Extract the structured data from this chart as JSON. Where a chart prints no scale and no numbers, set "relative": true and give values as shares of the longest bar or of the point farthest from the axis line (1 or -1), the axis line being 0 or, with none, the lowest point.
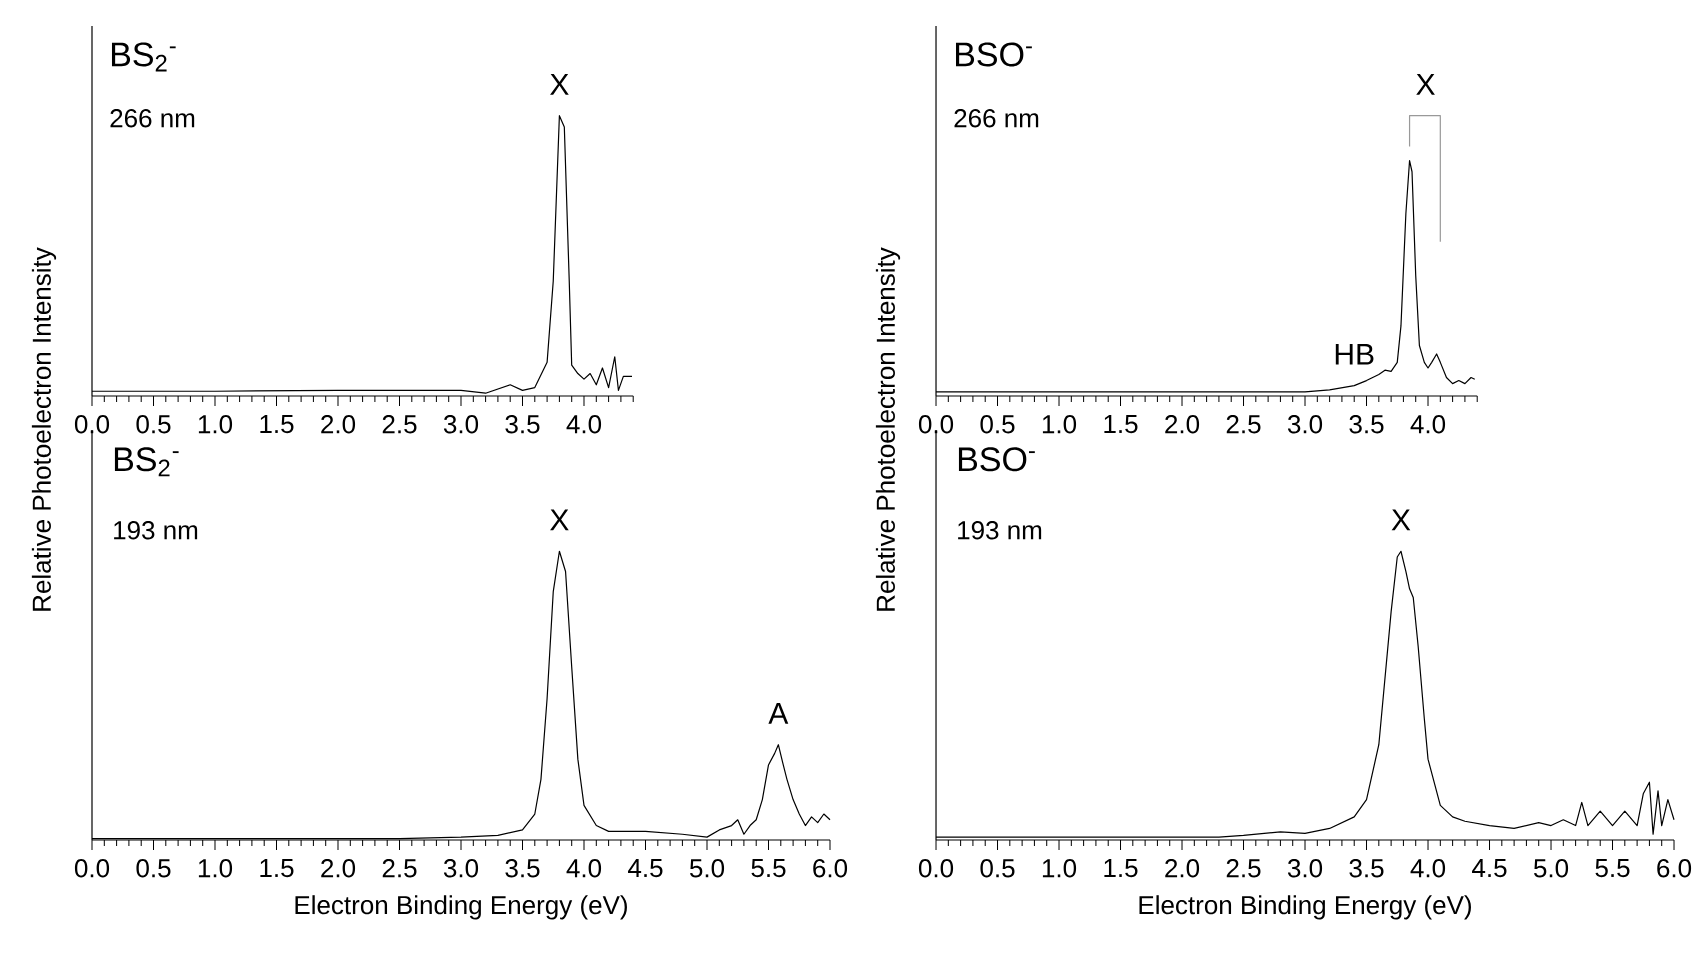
{
  "chart_data": [
    {
      "type": "line",
      "relative": true,
      "title": "BS$_{2}$$^{-}$",
      "subtitle": "266 nm",
      "ylabel": "Relative Photoelectron Intensity",
      "xlim": [
        0,
        4.4
      ],
      "xticks": [
        {
          "value": 0,
          "label": "0.0"
        },
        {
          "value": 0.1,
          "label": null
        },
        {
          "value": 0.2,
          "label": null
        },
        {
          "value": 0.3,
          "label": null
        },
        {
          "value": 0.4,
          "label": null
        },
        {
          "value": 0.5,
          "label": "0.5"
        },
        {
          "value": 0.6,
          "label": null
        },
        {
          "value": 0.7,
          "label": null
        },
        {
          "value": 0.8,
          "label": null
        },
        {
          "value": 0.9,
          "label": null
        },
        {
          "value": 1.0,
          "label": "1.0"
        },
        {
          "value": 1.1,
          "label": null
        },
        {
          "value": 1.2,
          "label": null
        },
        {
          "value": 1.3,
          "label": null
        },
        {
          "value": 1.4,
          "label": null
        },
        {
          "value": 1.5,
          "label": "1.5"
        },
        {
          "value": 1.6,
          "label": null
        },
        {
          "value": 1.7,
          "label": null
        },
        {
          "value": 1.8,
          "label": null
        },
        {
          "value": 1.9,
          "label": null
        },
        {
          "value": 2.0,
          "label": "2.0"
        },
        {
          "value": 2.1,
          "label": null
        },
        {
          "value": 2.2,
          "label": null
        },
        {
          "value": 2.3,
          "label": null
        },
        {
          "value": 2.4,
          "label": null
        },
        {
          "value": 2.5,
          "label": "2.5"
        },
        {
          "value": 2.6,
          "label": null
        },
        {
          "value": 2.7,
          "label": null
        },
        {
          "value": 2.8,
          "label": null
        },
        {
          "value": 2.9,
          "label": null
        },
        {
          "value": 3.0,
          "label": "3.0"
        },
        {
          "value": 3.1,
          "label": null
        },
        {
          "value": 3.2,
          "label": null
        },
        {
          "value": 3.3,
          "label": null
        },
        {
          "value": 3.4,
          "label": null
        },
        {
          "value": 3.5,
          "label": "3.5"
        },
        {
          "value": 3.6,
          "label": null
        },
        {
          "value": 3.7,
          "label": null
        },
        {
          "value": 3.8,
          "label": null
        },
        {
          "value": 3.9,
          "label": null
        },
        {
          "value": 4.0,
          "label": "4.0"
        },
        {
          "value": 4.1,
          "label": null
        },
        {
          "value": 4.2,
          "label": null
        },
        {
          "value": 4.3,
          "label": null
        },
        {
          "value": 4.4,
          "label": null
        }
      ],
      "series": [
        {
          "color": "#000000",
          "x": [
            0,
            1.0,
            2.0,
            2.5,
            3.0,
            3.2,
            3.4,
            3.5,
            3.6,
            3.7,
            3.75,
            3.8,
            3.84,
            3.88,
            3.9,
            3.95,
            4.0,
            4.05,
            4.1,
            4.15,
            4.2,
            4.25,
            4.28,
            4.32,
            4.39
          ],
          "values": [
            0.017,
            0.017,
            0.02,
            0.02,
            0.02,
            0.01,
            0.04,
            0.02,
            0.03,
            0.12,
            0.41,
            1.0,
            0.96,
            0.41,
            0.11,
            0.08,
            0.06,
            0.08,
            0.04,
            0.1,
            0.03,
            0.14,
            0.02,
            0.07,
            0.07
          ]
        }
      ],
      "annotations": [
        {
          "text": "X",
          "x": 3.8,
          "y": 1.0
        }
      ]
    },
    {
      "type": "line",
      "relative": true,
      "title": "BSO$^{-}$",
      "subtitle": "266 nm",
      "ylabel": "Relative Photoelectron Intensity",
      "xlim": [
        0,
        4.4
      ],
      "xticks": [
        {
          "value": 0,
          "label": "0.0"
        },
        {
          "value": 0.1,
          "label": null
        },
        {
          "value": 0.2,
          "label": null
        },
        {
          "value": 0.3,
          "label": null
        },
        {
          "value": 0.4,
          "label": null
        },
        {
          "value": 0.5,
          "label": "0.5"
        },
        {
          "value": 0.6,
          "label": null
        },
        {
          "value": 0.7,
          "label": null
        },
        {
          "value": 0.8,
          "label": null
        },
        {
          "value": 0.9,
          "label": null
        },
        {
          "value": 1.0,
          "label": "1.0"
        },
        {
          "value": 1.1,
          "label": null
        },
        {
          "value": 1.2,
          "label": null
        },
        {
          "value": 1.3,
          "label": null
        },
        {
          "value": 1.4,
          "label": null
        },
        {
          "value": 1.5,
          "label": "1.5"
        },
        {
          "value": 1.6,
          "label": null
        },
        {
          "value": 1.7,
          "label": null
        },
        {
          "value": 1.8,
          "label": null
        },
        {
          "value": 1.9,
          "label": null
        },
        {
          "value": 2.0,
          "label": "2.0"
        },
        {
          "value": 2.1,
          "label": null
        },
        {
          "value": 2.2,
          "label": null
        },
        {
          "value": 2.3,
          "label": null
        },
        {
          "value": 2.4,
          "label": null
        },
        {
          "value": 2.5,
          "label": "2.5"
        },
        {
          "value": 2.6,
          "label": null
        },
        {
          "value": 2.7,
          "label": null
        },
        {
          "value": 2.8,
          "label": null
        },
        {
          "value": 2.9,
          "label": null
        },
        {
          "value": 3.0,
          "label": "3.0"
        },
        {
          "value": 3.1,
          "label": null
        },
        {
          "value": 3.2,
          "label": null
        },
        {
          "value": 3.3,
          "label": null
        },
        {
          "value": 3.4,
          "label": null
        },
        {
          "value": 3.5,
          "label": "3.5"
        },
        {
          "value": 3.6,
          "label": null
        },
        {
          "value": 3.7,
          "label": null
        },
        {
          "value": 3.8,
          "label": null
        },
        {
          "value": 3.9,
          "label": null
        },
        {
          "value": 4.0,
          "label": "4.0"
        },
        {
          "value": 4.1,
          "label": null
        },
        {
          "value": 4.2,
          "label": null
        },
        {
          "value": 4.3,
          "label": null
        },
        {
          "value": 4.4,
          "label": null
        }
      ],
      "series": [
        {
          "color": "#000000",
          "x": [
            0,
            1.0,
            2.0,
            3.0,
            3.2,
            3.4,
            3.5,
            3.6,
            3.65,
            3.7,
            3.75,
            3.78,
            3.82,
            3.85,
            3.87,
            3.9,
            3.93,
            3.97,
            4.0,
            4.03,
            4.07,
            4.1,
            4.15,
            4.2,
            4.25,
            4.3,
            4.35,
            4.38
          ],
          "values": [
            0.015,
            0.015,
            0.015,
            0.015,
            0.022,
            0.037,
            0.055,
            0.077,
            0.092,
            0.088,
            0.12,
            0.25,
            0.65,
            0.84,
            0.8,
            0.43,
            0.18,
            0.12,
            0.1,
            0.12,
            0.15,
            0.12,
            0.066,
            0.044,
            0.055,
            0.044,
            0.066,
            0.06
          ]
        },
        {
          "color": "#999999",
          "x": [
            3.85,
            3.85,
            4.1,
            4.1
          ],
          "values": [
            0.89,
            1.0,
            1.0,
            0.55
          ]
        }
      ],
      "annotations": [
        {
          "text": "X",
          "x": 3.98,
          "y": 1.0
        },
        {
          "text": "HB",
          "x": 3.4,
          "y": 0.037
        }
      ]
    },
    {
      "type": "line",
      "relative": true,
      "title": "BS$_{2}$$^{-}$",
      "subtitle": "193 nm",
      "xlabel": "Electron Binding Energy (eV)",
      "xlim": [
        0,
        6.0
      ],
      "xticks": [
        {
          "value": 0,
          "label": "0.0"
        },
        {
          "value": 0.1,
          "label": null
        },
        {
          "value": 0.2,
          "label": null
        },
        {
          "value": 0.3,
          "label": null
        },
        {
          "value": 0.4,
          "label": null
        },
        {
          "value": 0.5,
          "label": "0.5"
        },
        {
          "value": 0.6,
          "label": null
        },
        {
          "value": 0.7,
          "label": null
        },
        {
          "value": 0.8,
          "label": null
        },
        {
          "value": 0.9,
          "label": null
        },
        {
          "value": 1.0,
          "label": "1.0"
        },
        {
          "value": 1.1,
          "label": null
        },
        {
          "value": 1.2,
          "label": null
        },
        {
          "value": 1.3,
          "label": null
        },
        {
          "value": 1.4,
          "label": null
        },
        {
          "value": 1.5,
          "label": "1.5"
        },
        {
          "value": 1.6,
          "label": null
        },
        {
          "value": 1.7,
          "label": null
        },
        {
          "value": 1.8,
          "label": null
        },
        {
          "value": 1.9,
          "label": null
        },
        {
          "value": 2.0,
          "label": "2.0"
        },
        {
          "value": 2.1,
          "label": null
        },
        {
          "value": 2.2,
          "label": null
        },
        {
          "value": 2.3,
          "label": null
        },
        {
          "value": 2.4,
          "label": null
        },
        {
          "value": 2.5,
          "label": "2.5"
        },
        {
          "value": 2.6,
          "label": null
        },
        {
          "value": 2.7,
          "label": null
        },
        {
          "value": 2.8,
          "label": null
        },
        {
          "value": 2.9,
          "label": null
        },
        {
          "value": 3.0,
          "label": "3.0"
        },
        {
          "value": 3.1,
          "label": null
        },
        {
          "value": 3.2,
          "label": null
        },
        {
          "value": 3.3,
          "label": null
        },
        {
          "value": 3.4,
          "label": null
        },
        {
          "value": 3.5,
          "label": "3.5"
        },
        {
          "value": 3.6,
          "label": null
        },
        {
          "value": 3.7,
          "label": null
        },
        {
          "value": 3.8,
          "label": null
        },
        {
          "value": 3.9,
          "label": null
        },
        {
          "value": 4.0,
          "label": "4.0"
        },
        {
          "value": 4.1,
          "label": null
        },
        {
          "value": 4.2,
          "label": null
        },
        {
          "value": 4.3,
          "label": null
        },
        {
          "value": 4.4,
          "label": null
        },
        {
          "value": 4.5,
          "label": "4.5"
        },
        {
          "value": 4.6,
          "label": null
        },
        {
          "value": 4.7,
          "label": null
        },
        {
          "value": 4.8,
          "label": null
        },
        {
          "value": 4.9,
          "label": null
        },
        {
          "value": 5.0,
          "label": "5.0"
        },
        {
          "value": 5.1,
          "label": null
        },
        {
          "value": 5.2,
          "label": null
        },
        {
          "value": 5.3,
          "label": null
        },
        {
          "value": 5.4,
          "label": null
        },
        {
          "value": 5.5,
          "label": "5.5"
        },
        {
          "value": 5.6,
          "label": null
        },
        {
          "value": 5.7,
          "label": null
        },
        {
          "value": 5.8,
          "label": null
        },
        {
          "value": 5.9,
          "label": null
        },
        {
          "value": 6.0,
          "label": "6.0"
        }
      ],
      "series": [
        {
          "color": "#000000",
          "x": [
            0,
            1.0,
            2.0,
            2.5,
            3.0,
            3.3,
            3.5,
            3.6,
            3.65,
            3.7,
            3.75,
            3.8,
            3.85,
            3.9,
            3.95,
            4.0,
            4.1,
            4.2,
            4.5,
            4.8,
            5.0,
            5.1,
            5.2,
            5.25,
            5.3,
            5.35,
            5.4,
            5.45,
            5.5,
            5.55,
            5.58,
            5.62,
            5.65,
            5.7,
            5.75,
            5.8,
            5.85,
            5.9,
            5.95,
            6.0
          ],
          "values": [
            0.005,
            0.005,
            0.005,
            0.005,
            0.01,
            0.016,
            0.035,
            0.09,
            0.21,
            0.49,
            0.86,
            1.0,
            0.93,
            0.6,
            0.28,
            0.12,
            0.05,
            0.03,
            0.03,
            0.02,
            0.01,
            0.035,
            0.05,
            0.07,
            0.02,
            0.05,
            0.07,
            0.14,
            0.26,
            0.3,
            0.33,
            0.26,
            0.21,
            0.14,
            0.09,
            0.05,
            0.08,
            0.06,
            0.09,
            0.07
          ]
        }
      ],
      "annotations": [
        {
          "text": "X",
          "x": 3.8,
          "y": 1.0
        },
        {
          "text": "A",
          "x": 5.58,
          "y": 0.33
        }
      ]
    },
    {
      "type": "line",
      "relative": true,
      "title": "BSO$^{-}$",
      "subtitle": "193 nm",
      "xlabel": "Electron Binding Energy (eV)",
      "xlim": [
        0,
        6.0
      ],
      "xticks": [
        {
          "value": 0,
          "label": "0.0"
        },
        {
          "value": 0.1,
          "label": null
        },
        {
          "value": 0.2,
          "label": null
        },
        {
          "value": 0.3,
          "label": null
        },
        {
          "value": 0.4,
          "label": null
        },
        {
          "value": 0.5,
          "label": "0.5"
        },
        {
          "value": 0.6,
          "label": null
        },
        {
          "value": 0.7,
          "label": null
        },
        {
          "value": 0.8,
          "label": null
        },
        {
          "value": 0.9,
          "label": null
        },
        {
          "value": 1.0,
          "label": "1.0"
        },
        {
          "value": 1.1,
          "label": null
        },
        {
          "value": 1.2,
          "label": null
        },
        {
          "value": 1.3,
          "label": null
        },
        {
          "value": 1.4,
          "label": null
        },
        {
          "value": 1.5,
          "label": "1.5"
        },
        {
          "value": 1.6,
          "label": null
        },
        {
          "value": 1.7,
          "label": null
        },
        {
          "value": 1.8,
          "label": null
        },
        {
          "value": 1.9,
          "label": null
        },
        {
          "value": 2.0,
          "label": "2.0"
        },
        {
          "value": 2.1,
          "label": null
        },
        {
          "value": 2.2,
          "label": null
        },
        {
          "value": 2.3,
          "label": null
        },
        {
          "value": 2.4,
          "label": null
        },
        {
          "value": 2.5,
          "label": "2.5"
        },
        {
          "value": 2.6,
          "label": null
        },
        {
          "value": 2.7,
          "label": null
        },
        {
          "value": 2.8,
          "label": null
        },
        {
          "value": 2.9,
          "label": null
        },
        {
          "value": 3.0,
          "label": "3.0"
        },
        {
          "value": 3.1,
          "label": null
        },
        {
          "value": 3.2,
          "label": null
        },
        {
          "value": 3.3,
          "label": null
        },
        {
          "value": 3.4,
          "label": null
        },
        {
          "value": 3.5,
          "label": "3.5"
        },
        {
          "value": 3.6,
          "label": null
        },
        {
          "value": 3.7,
          "label": null
        },
        {
          "value": 3.8,
          "label": null
        },
        {
          "value": 3.9,
          "label": null
        },
        {
          "value": 4.0,
          "label": "4.0"
        },
        {
          "value": 4.1,
          "label": null
        },
        {
          "value": 4.2,
          "label": null
        },
        {
          "value": 4.3,
          "label": null
        },
        {
          "value": 4.4,
          "label": null
        },
        {
          "value": 4.5,
          "label": "4.5"
        },
        {
          "value": 4.6,
          "label": null
        },
        {
          "value": 4.7,
          "label": null
        },
        {
          "value": 4.8,
          "label": null
        },
        {
          "value": 4.9,
          "label": null
        },
        {
          "value": 5.0,
          "label": "5.0"
        },
        {
          "value": 5.1,
          "label": null
        },
        {
          "value": 5.2,
          "label": null
        },
        {
          "value": 5.3,
          "label": null
        },
        {
          "value": 5.4,
          "label": null
        },
        {
          "value": 5.5,
          "label": "5.5"
        },
        {
          "value": 5.6,
          "label": null
        },
        {
          "value": 5.7,
          "label": null
        },
        {
          "value": 5.8,
          "label": null
        },
        {
          "value": 5.9,
          "label": null
        },
        {
          "value": 6.0,
          "label": "6.0"
        }
      ],
      "series": [
        {
          "color": "#000000",
          "x": [
            0,
            1.0,
            2.0,
            2.3,
            2.5,
            2.8,
            3.0,
            3.2,
            3.4,
            3.5,
            3.6,
            3.7,
            3.75,
            3.78,
            3.82,
            3.85,
            3.88,
            3.92,
            3.97,
            4.0,
            4.1,
            4.2,
            4.3,
            4.5,
            4.7,
            4.9,
            5.0,
            5.1,
            5.2,
            5.25,
            5.3,
            5.4,
            5.5,
            5.6,
            5.7,
            5.75,
            5.8,
            5.83,
            5.87,
            5.9,
            5.95,
            6.0
          ],
          "values": [
            0.01,
            0.01,
            0.01,
            0.01,
            0.016,
            0.028,
            0.023,
            0.04,
            0.08,
            0.14,
            0.33,
            0.79,
            0.98,
            1.0,
            0.93,
            0.87,
            0.84,
            0.67,
            0.42,
            0.28,
            0.12,
            0.08,
            0.065,
            0.05,
            0.04,
            0.06,
            0.05,
            0.07,
            0.05,
            0.13,
            0.05,
            0.1,
            0.05,
            0.1,
            0.05,
            0.16,
            0.2,
            0.02,
            0.17,
            0.05,
            0.14,
            0.07
          ]
        }
      ],
      "annotations": [
        {
          "text": "X",
          "x": 3.78,
          "y": 1.0
        }
      ]
    }
  ]
}
